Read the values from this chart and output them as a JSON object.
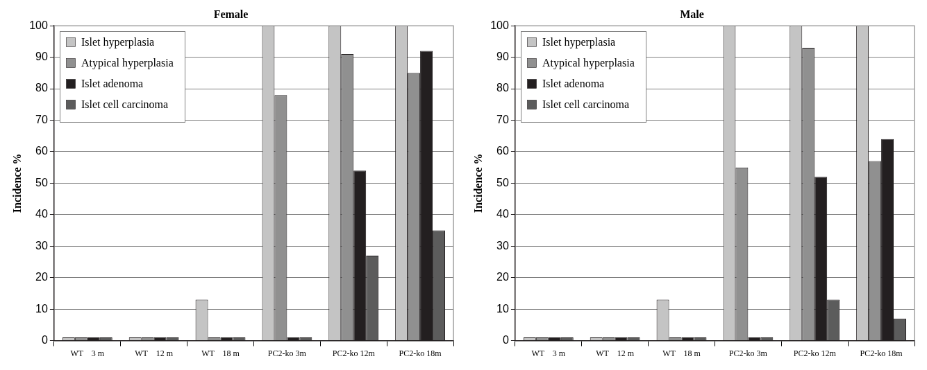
{
  "chart_data": [
    {
      "type": "bar",
      "title": "Female",
      "ylabel": "Incidence %",
      "categories": [
        "WT    3 m",
        "WT    12 m",
        "WT    18 m",
        "PC2-ko 3m",
        "PC2-ko 12m",
        "PC2-ko 18m"
      ],
      "series": [
        {
          "name": "Islet hyperplasia",
          "color": "#c4c4c4",
          "values": [
            1,
            1,
            13,
            100,
            100,
            100
          ]
        },
        {
          "name": "Atypical hyperplasia",
          "color": "#909090",
          "values": [
            1,
            1,
            1,
            78,
            91,
            85
          ]
        },
        {
          "name": "Islet adenoma",
          "color": "#231f20",
          "values": [
            1,
            1,
            1,
            1,
            54,
            92
          ]
        },
        {
          "name": "Islet cell carcinoma",
          "color": "#5c5c5c",
          "values": [
            1,
            1,
            1,
            1,
            27,
            35
          ]
        }
      ],
      "ylim": [
        0,
        100
      ],
      "yticks": [
        0,
        10,
        20,
        30,
        40,
        50,
        60,
        70,
        80,
        90,
        100
      ],
      "grid": "y",
      "legend": "top left"
    },
    {
      "type": "bar",
      "title": "Male",
      "ylabel": "Incidence %",
      "categories": [
        "WT    3 m",
        "WT    12 m",
        "WT    18 m",
        "PC2-ko 3m",
        "PC2-ko 12m",
        "PC2-ko 18m"
      ],
      "series": [
        {
          "name": "Islet hyperplasia",
          "color": "#c4c4c4",
          "values": [
            1,
            1,
            13,
            100,
            100,
            100
          ]
        },
        {
          "name": "Atypical hyperplasia",
          "color": "#909090",
          "values": [
            1,
            1,
            1,
            55,
            93,
            57
          ]
        },
        {
          "name": "Islet adenoma",
          "color": "#231f20",
          "values": [
            1,
            1,
            1,
            1,
            52,
            64
          ]
        },
        {
          "name": "Islet cell carcinoma",
          "color": "#5c5c5c",
          "values": [
            1,
            1,
            1,
            1,
            13,
            7
          ]
        }
      ],
      "ylim": [
        0,
        100
      ],
      "yticks": [
        0,
        10,
        20,
        30,
        40,
        50,
        60,
        70,
        80,
        90,
        100
      ],
      "grid": "y",
      "legend": "top left"
    }
  ]
}
